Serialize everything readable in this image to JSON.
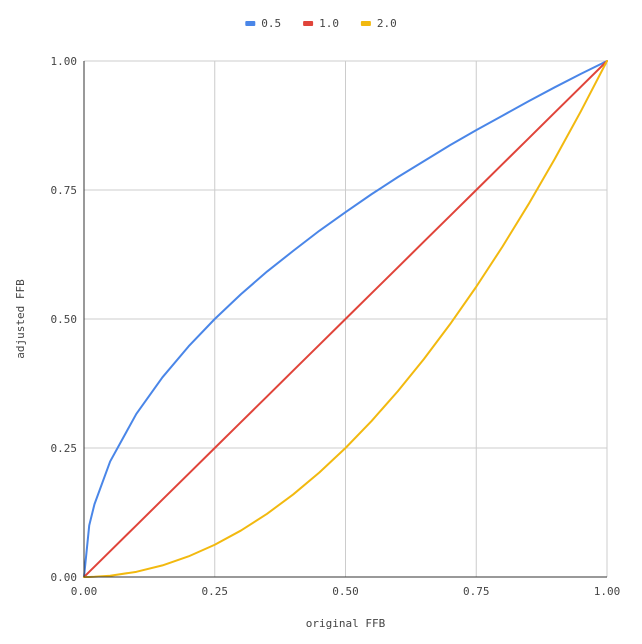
{
  "chart_data": {
    "type": "line",
    "title": "",
    "xlabel": "original FFB",
    "ylabel": "adjusted FFB",
    "xlim": [
      0,
      1
    ],
    "ylim": [
      0,
      1
    ],
    "xticks": [
      0,
      0.25,
      0.5,
      0.75,
      1
    ],
    "yticks": [
      0,
      0.25,
      0.5,
      0.75,
      1
    ],
    "xtick_labels": [
      "0.00",
      "0.25",
      "0.50",
      "0.75",
      "1.00"
    ],
    "ytick_labels": [
      "0.00",
      "0.25",
      "0.50",
      "0.75",
      "1.00"
    ],
    "grid": true,
    "legend_position": "top-center",
    "x": [
      0,
      0.01,
      0.02,
      0.05,
      0.1,
      0.15,
      0.2,
      0.25,
      0.3,
      0.35,
      0.4,
      0.45,
      0.5,
      0.55,
      0.6,
      0.65,
      0.7,
      0.75,
      0.8,
      0.85,
      0.9,
      0.95,
      1.0
    ],
    "series": [
      {
        "name": "0.5",
        "color": "#4a86e8",
        "values": [
          0,
          0.1,
          0.141,
          0.224,
          0.316,
          0.387,
          0.447,
          0.5,
          0.548,
          0.592,
          0.632,
          0.671,
          0.707,
          0.742,
          0.775,
          0.806,
          0.837,
          0.866,
          0.894,
          0.922,
          0.949,
          0.975,
          1.0
        ]
      },
      {
        "name": "1.0",
        "color": "#e0443a",
        "values": [
          0,
          0.01,
          0.02,
          0.05,
          0.1,
          0.15,
          0.2,
          0.25,
          0.3,
          0.35,
          0.4,
          0.45,
          0.5,
          0.55,
          0.6,
          0.65,
          0.7,
          0.75,
          0.8,
          0.85,
          0.9,
          0.95,
          1.0
        ]
      },
      {
        "name": "2.0",
        "color": "#f2b90f",
        "values": [
          0,
          0.0001,
          0.0004,
          0.0025,
          0.01,
          0.0225,
          0.04,
          0.0625,
          0.09,
          0.1225,
          0.16,
          0.2025,
          0.25,
          0.3025,
          0.36,
          0.4225,
          0.49,
          0.5625,
          0.64,
          0.7225,
          0.81,
          0.9025,
          1.0
        ]
      }
    ]
  }
}
